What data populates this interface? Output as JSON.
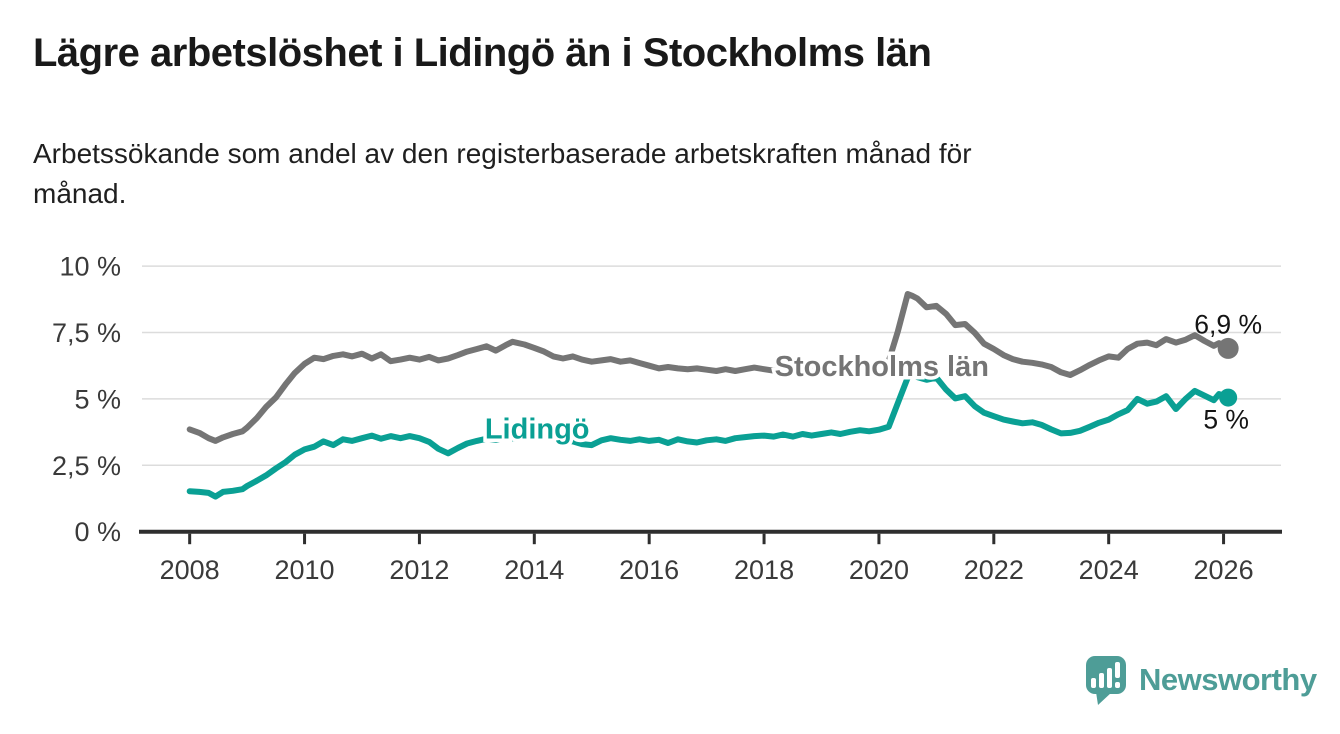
{
  "header": {
    "title": "Lägre arbetslöshet i Lidingö än i Stockholms län",
    "subtitle": {
      "line1": "Arbetssökande som andel av den registerbaserade arbetskraften månad för",
      "line2": "månad."
    }
  },
  "footer": {
    "brand": "Newsworthy",
    "logo_icon": "speech-bubble-bar-chart-icon"
  },
  "colors": {
    "stockholm_line": "#757575",
    "lidingo_line": "#0aa094",
    "axis": "#2e2e2e",
    "grid": "#dcdcdc",
    "title_text": "#191919",
    "brand_teal": "#4E9D97"
  },
  "chart_data": {
    "type": "line",
    "title": "Lägre arbetslöshet i Lidingö än i Stockholms län",
    "xlabel": "",
    "ylabel": "Arbetssökande som andel av den registerbaserade arbetskraften",
    "grid": true,
    "xlim": [
      2007.17,
      2027.0
    ],
    "ylim": [
      0,
      10
    ],
    "x_ticks": [
      {
        "v": 2008,
        "label": "2008"
      },
      {
        "v": 2010,
        "label": "2010"
      },
      {
        "v": 2012,
        "label": "2012"
      },
      {
        "v": 2014,
        "label": "2014"
      },
      {
        "v": 2016,
        "label": "2016"
      },
      {
        "v": 2018,
        "label": "2018"
      },
      {
        "v": 2020,
        "label": "2020"
      },
      {
        "v": 2022,
        "label": "2022"
      },
      {
        "v": 2024,
        "label": "2024"
      },
      {
        "v": 2026,
        "label": "2026"
      }
    ],
    "y_ticks": [
      {
        "v": 0,
        "label": "0 %"
      },
      {
        "v": 2.5,
        "label": "2,5 %"
      },
      {
        "v": 5,
        "label": "5 %"
      },
      {
        "v": 7.5,
        "label": "7,5 %"
      },
      {
        "v": 10,
        "label": "10 %"
      }
    ],
    "series": [
      {
        "name": "Stockholms län",
        "color": "#757575",
        "end_label": "6,9 %",
        "end_value": 6.9,
        "label_anchor": {
          "x": 2020.05,
          "y": 6.24
        },
        "points": [
          [
            2008.0,
            3.85
          ],
          [
            2008.17,
            3.72
          ],
          [
            2008.33,
            3.52
          ],
          [
            2008.45,
            3.42
          ],
          [
            2008.58,
            3.55
          ],
          [
            2008.75,
            3.68
          ],
          [
            2008.92,
            3.78
          ],
          [
            2009.0,
            3.92
          ],
          [
            2009.17,
            4.28
          ],
          [
            2009.33,
            4.7
          ],
          [
            2009.5,
            5.05
          ],
          [
            2009.67,
            5.55
          ],
          [
            2009.83,
            5.98
          ],
          [
            2010.0,
            6.32
          ],
          [
            2010.17,
            6.55
          ],
          [
            2010.33,
            6.5
          ],
          [
            2010.5,
            6.62
          ],
          [
            2010.67,
            6.68
          ],
          [
            2010.83,
            6.6
          ],
          [
            2011.0,
            6.7
          ],
          [
            2011.17,
            6.52
          ],
          [
            2011.33,
            6.68
          ],
          [
            2011.5,
            6.42
          ],
          [
            2011.67,
            6.48
          ],
          [
            2011.83,
            6.55
          ],
          [
            2012.0,
            6.48
          ],
          [
            2012.17,
            6.58
          ],
          [
            2012.33,
            6.45
          ],
          [
            2012.5,
            6.52
          ],
          [
            2012.67,
            6.65
          ],
          [
            2012.83,
            6.78
          ],
          [
            2013.0,
            6.88
          ],
          [
            2013.17,
            6.98
          ],
          [
            2013.33,
            6.82
          ],
          [
            2013.5,
            7.02
          ],
          [
            2013.62,
            7.15
          ],
          [
            2013.83,
            7.05
          ],
          [
            2014.0,
            6.92
          ],
          [
            2014.17,
            6.78
          ],
          [
            2014.33,
            6.6
          ],
          [
            2014.5,
            6.52
          ],
          [
            2014.67,
            6.6
          ],
          [
            2014.83,
            6.48
          ],
          [
            2015.0,
            6.4
          ],
          [
            2015.17,
            6.45
          ],
          [
            2015.33,
            6.5
          ],
          [
            2015.5,
            6.4
          ],
          [
            2015.67,
            6.45
          ],
          [
            2015.83,
            6.35
          ],
          [
            2016.0,
            6.25
          ],
          [
            2016.17,
            6.15
          ],
          [
            2016.33,
            6.2
          ],
          [
            2016.5,
            6.15
          ],
          [
            2016.67,
            6.12
          ],
          [
            2016.83,
            6.15
          ],
          [
            2017.0,
            6.1
          ],
          [
            2017.17,
            6.05
          ],
          [
            2017.33,
            6.12
          ],
          [
            2017.5,
            6.05
          ],
          [
            2017.67,
            6.12
          ],
          [
            2017.83,
            6.18
          ],
          [
            2018.0,
            6.12
          ],
          [
            2018.17,
            6.06
          ],
          [
            2018.33,
            6.14
          ],
          [
            2018.5,
            6.08
          ],
          [
            2018.67,
            6.16
          ],
          [
            2018.83,
            6.1
          ],
          [
            2019.0,
            6.18
          ],
          [
            2019.17,
            6.12
          ],
          [
            2019.33,
            6.2
          ],
          [
            2019.5,
            6.16
          ],
          [
            2019.67,
            6.22
          ],
          [
            2019.83,
            6.18
          ],
          [
            2020.0,
            6.25
          ],
          [
            2020.17,
            6.42
          ],
          [
            2020.33,
            7.55
          ],
          [
            2020.5,
            8.95
          ],
          [
            2020.58,
            8.88
          ],
          [
            2020.67,
            8.78
          ],
          [
            2020.83,
            8.45
          ],
          [
            2021.0,
            8.5
          ],
          [
            2021.17,
            8.2
          ],
          [
            2021.33,
            7.78
          ],
          [
            2021.5,
            7.82
          ],
          [
            2021.67,
            7.48
          ],
          [
            2021.83,
            7.08
          ],
          [
            2022.0,
            6.88
          ],
          [
            2022.17,
            6.65
          ],
          [
            2022.33,
            6.5
          ],
          [
            2022.5,
            6.4
          ],
          [
            2022.67,
            6.36
          ],
          [
            2022.83,
            6.3
          ],
          [
            2023.0,
            6.2
          ],
          [
            2023.17,
            6.0
          ],
          [
            2023.33,
            5.9
          ],
          [
            2023.5,
            6.08
          ],
          [
            2023.67,
            6.28
          ],
          [
            2023.83,
            6.45
          ],
          [
            2024.0,
            6.6
          ],
          [
            2024.17,
            6.55
          ],
          [
            2024.33,
            6.88
          ],
          [
            2024.5,
            7.08
          ],
          [
            2024.67,
            7.12
          ],
          [
            2024.83,
            7.02
          ],
          [
            2025.0,
            7.25
          ],
          [
            2025.17,
            7.12
          ],
          [
            2025.33,
            7.22
          ],
          [
            2025.5,
            7.4
          ],
          [
            2025.67,
            7.18
          ],
          [
            2025.83,
            7.0
          ],
          [
            2025.92,
            7.1
          ],
          [
            2026.08,
            6.9
          ]
        ]
      },
      {
        "name": "Lidingö",
        "color": "#0aa094",
        "end_label": "5 %",
        "end_value": 5.0,
        "label_anchor": {
          "x": 2014.05,
          "y": 3.89
        },
        "points": [
          [
            2008.0,
            1.52
          ],
          [
            2008.17,
            1.5
          ],
          [
            2008.33,
            1.46
          ],
          [
            2008.45,
            1.32
          ],
          [
            2008.58,
            1.5
          ],
          [
            2008.75,
            1.54
          ],
          [
            2008.92,
            1.6
          ],
          [
            2009.0,
            1.72
          ],
          [
            2009.17,
            1.92
          ],
          [
            2009.33,
            2.12
          ],
          [
            2009.5,
            2.38
          ],
          [
            2009.67,
            2.62
          ],
          [
            2009.83,
            2.9
          ],
          [
            2010.0,
            3.1
          ],
          [
            2010.17,
            3.2
          ],
          [
            2010.33,
            3.4
          ],
          [
            2010.5,
            3.26
          ],
          [
            2010.67,
            3.48
          ],
          [
            2010.83,
            3.42
          ],
          [
            2011.0,
            3.52
          ],
          [
            2011.17,
            3.62
          ],
          [
            2011.33,
            3.5
          ],
          [
            2011.5,
            3.6
          ],
          [
            2011.67,
            3.52
          ],
          [
            2011.83,
            3.6
          ],
          [
            2012.0,
            3.52
          ],
          [
            2012.17,
            3.38
          ],
          [
            2012.33,
            3.12
          ],
          [
            2012.5,
            2.95
          ],
          [
            2012.67,
            3.15
          ],
          [
            2012.83,
            3.32
          ],
          [
            2013.0,
            3.42
          ],
          [
            2013.17,
            3.5
          ],
          [
            2013.33,
            3.46
          ],
          [
            2013.5,
            3.54
          ],
          [
            2013.67,
            3.5
          ],
          [
            2013.83,
            3.56
          ],
          [
            2014.0,
            3.52
          ],
          [
            2014.17,
            3.56
          ],
          [
            2014.33,
            3.5
          ],
          [
            2014.5,
            3.45
          ],
          [
            2014.67,
            3.4
          ],
          [
            2014.83,
            3.3
          ],
          [
            2015.0,
            3.26
          ],
          [
            2015.17,
            3.44
          ],
          [
            2015.33,
            3.52
          ],
          [
            2015.5,
            3.46
          ],
          [
            2015.67,
            3.42
          ],
          [
            2015.83,
            3.48
          ],
          [
            2016.0,
            3.42
          ],
          [
            2016.17,
            3.46
          ],
          [
            2016.33,
            3.34
          ],
          [
            2016.5,
            3.48
          ],
          [
            2016.67,
            3.4
          ],
          [
            2016.83,
            3.36
          ],
          [
            2017.0,
            3.44
          ],
          [
            2017.17,
            3.48
          ],
          [
            2017.33,
            3.42
          ],
          [
            2017.5,
            3.52
          ],
          [
            2017.67,
            3.56
          ],
          [
            2017.83,
            3.6
          ],
          [
            2018.0,
            3.62
          ],
          [
            2018.17,
            3.58
          ],
          [
            2018.33,
            3.66
          ],
          [
            2018.5,
            3.58
          ],
          [
            2018.67,
            3.68
          ],
          [
            2018.83,
            3.62
          ],
          [
            2019.0,
            3.68
          ],
          [
            2019.17,
            3.74
          ],
          [
            2019.33,
            3.68
          ],
          [
            2019.5,
            3.76
          ],
          [
            2019.67,
            3.82
          ],
          [
            2019.83,
            3.78
          ],
          [
            2020.0,
            3.84
          ],
          [
            2020.17,
            3.95
          ],
          [
            2020.33,
            4.85
          ],
          [
            2020.5,
            5.8
          ],
          [
            2020.58,
            5.9
          ],
          [
            2020.67,
            5.82
          ],
          [
            2020.83,
            5.72
          ],
          [
            2021.0,
            5.8
          ],
          [
            2021.17,
            5.35
          ],
          [
            2021.33,
            5.02
          ],
          [
            2021.5,
            5.1
          ],
          [
            2021.67,
            4.72
          ],
          [
            2021.83,
            4.48
          ],
          [
            2022.0,
            4.35
          ],
          [
            2022.17,
            4.22
          ],
          [
            2022.33,
            4.15
          ],
          [
            2022.5,
            4.08
          ],
          [
            2022.67,
            4.12
          ],
          [
            2022.83,
            4.02
          ],
          [
            2023.0,
            3.85
          ],
          [
            2023.17,
            3.7
          ],
          [
            2023.33,
            3.72
          ],
          [
            2023.5,
            3.8
          ],
          [
            2023.67,
            3.95
          ],
          [
            2023.83,
            4.1
          ],
          [
            2024.0,
            4.22
          ],
          [
            2024.17,
            4.42
          ],
          [
            2024.33,
            4.58
          ],
          [
            2024.5,
            5.0
          ],
          [
            2024.67,
            4.82
          ],
          [
            2024.83,
            4.9
          ],
          [
            2025.0,
            5.1
          ],
          [
            2025.17,
            4.62
          ],
          [
            2025.33,
            4.98
          ],
          [
            2025.5,
            5.3
          ],
          [
            2025.67,
            5.12
          ],
          [
            2025.83,
            4.95
          ],
          [
            2025.92,
            5.18
          ],
          [
            2026.08,
            5.05
          ]
        ]
      }
    ]
  }
}
